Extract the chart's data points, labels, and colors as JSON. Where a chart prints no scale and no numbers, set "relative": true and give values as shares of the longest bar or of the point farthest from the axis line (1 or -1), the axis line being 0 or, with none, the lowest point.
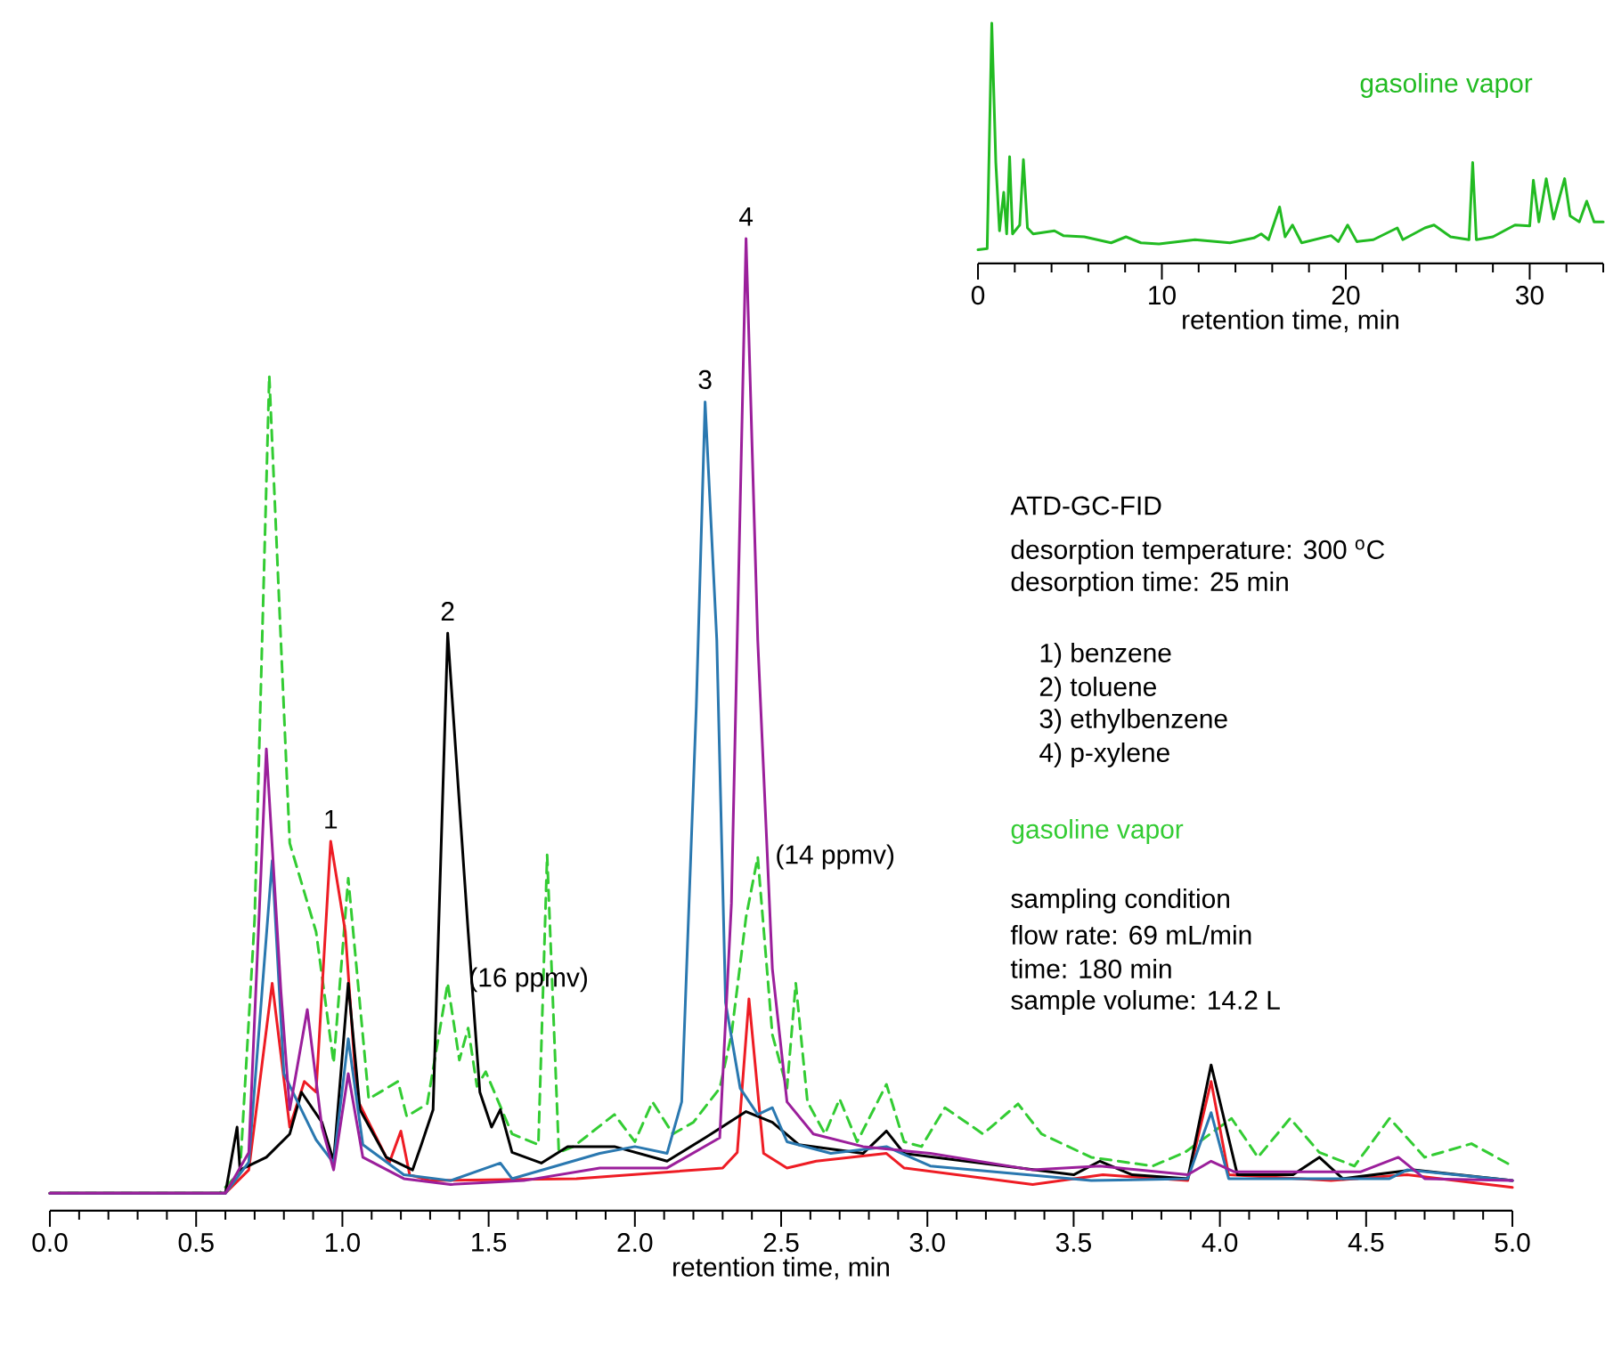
{
  "chart_data": [
    {
      "type": "line",
      "relative": true,
      "xlabel": "retention time, min",
      "xlim": [
        0,
        5
      ],
      "xticks": [
        {
          "value": 0,
          "label": "0.0"
        },
        {
          "value": 0.1,
          "label": null
        },
        {
          "value": 0.2,
          "label": null
        },
        {
          "value": 0.3,
          "label": null
        },
        {
          "value": 0.4,
          "label": null
        },
        {
          "value": 0.5,
          "label": "0.5"
        },
        {
          "value": 0.6,
          "label": null
        },
        {
          "value": 0.7,
          "label": null
        },
        {
          "value": 0.8,
          "label": null
        },
        {
          "value": 0.9,
          "label": null
        },
        {
          "value": 1,
          "label": "1.0"
        },
        {
          "value": 1.1,
          "label": null
        },
        {
          "value": 1.2,
          "label": null
        },
        {
          "value": 1.3,
          "label": null
        },
        {
          "value": 1.4,
          "label": null
        },
        {
          "value": 1.5,
          "label": "1.5"
        },
        {
          "value": 1.6,
          "label": null
        },
        {
          "value": 1.7,
          "label": null
        },
        {
          "value": 1.8,
          "label": null
        },
        {
          "value": 1.9,
          "label": null
        },
        {
          "value": 2,
          "label": "2.0"
        },
        {
          "value": 2.1,
          "label": null
        },
        {
          "value": 2.2,
          "label": null
        },
        {
          "value": 2.3,
          "label": null
        },
        {
          "value": 2.4,
          "label": null
        },
        {
          "value": 2.5,
          "label": "2.5"
        },
        {
          "value": 2.6,
          "label": null
        },
        {
          "value": 2.7,
          "label": null
        },
        {
          "value": 2.8,
          "label": null
        },
        {
          "value": 2.9,
          "label": null
        },
        {
          "value": 3,
          "label": "3.0"
        },
        {
          "value": 3.1,
          "label": null
        },
        {
          "value": 3.2,
          "label": null
        },
        {
          "value": 3.3,
          "label": null
        },
        {
          "value": 3.4,
          "label": null
        },
        {
          "value": 3.5,
          "label": "3.5"
        },
        {
          "value": 3.6,
          "label": null
        },
        {
          "value": 3.7,
          "label": null
        },
        {
          "value": 3.8,
          "label": null
        },
        {
          "value": 3.9,
          "label": null
        },
        {
          "value": 4,
          "label": "4.0"
        },
        {
          "value": 4.1,
          "label": null
        },
        {
          "value": 4.2,
          "label": null
        },
        {
          "value": 4.3,
          "label": null
        },
        {
          "value": 4.4,
          "label": null
        },
        {
          "value": 4.5,
          "label": "4.5"
        },
        {
          "value": 4.6,
          "label": null
        },
        {
          "value": 4.7,
          "label": null
        },
        {
          "value": 4.8,
          "label": null
        },
        {
          "value": 4.9,
          "label": null
        },
        {
          "value": 5,
          "label": "5.0"
        }
      ],
      "series": [
        {
          "name": "gasoline vapor",
          "color": "#33cc33",
          "line_style": "dashed",
          "x": [
            0,
            0.58,
            0.65,
            0.7,
            0.75,
            0.82,
            0.91,
            0.97,
            1.02,
            1.09,
            1.19,
            1.22,
            1.29,
            1.36,
            1.4,
            1.43,
            1.46,
            1.49,
            1.58,
            1.67,
            1.7,
            1.74,
            1.79,
            1.93,
            2.0,
            2.06,
            2.13,
            2.2,
            2.29,
            2.33,
            2.38,
            2.42,
            2.47,
            2.52,
            2.55,
            2.59,
            2.65,
            2.7,
            2.76,
            2.86,
            2.92,
            2.98,
            3.06,
            3.19,
            3.31,
            3.39,
            3.56,
            3.77,
            3.88,
            4.04,
            4.13,
            4.24,
            4.34,
            4.46,
            4.58,
            4.7,
            4.86,
            5.0
          ],
          "values": [
            0.018,
            0.018,
            0.04,
            0.3,
            0.859,
            0.378,
            0.287,
            0.152,
            0.342,
            0.115,
            0.133,
            0.097,
            0.11,
            0.234,
            0.155,
            0.188,
            0.128,
            0.143,
            0.079,
            0.068,
            0.366,
            0.06,
            0.066,
            0.099,
            0.071,
            0.112,
            0.079,
            0.091,
            0.126,
            0.181,
            0.302,
            0.364,
            0.181,
            0.126,
            0.234,
            0.112,
            0.079,
            0.115,
            0.071,
            0.13,
            0.071,
            0.066,
            0.106,
            0.079,
            0.11,
            0.079,
            0.055,
            0.046,
            0.06,
            0.095,
            0.055,
            0.095,
            0.06,
            0.046,
            0.095,
            0.055,
            0.069,
            0.046
          ]
        },
        {
          "color": "#ee1c24",
          "x": [
            0,
            0.6,
            0.68,
            0.76,
            0.82,
            0.87,
            0.91,
            0.96,
            1.01,
            1.05,
            1.11,
            1.16,
            1.2,
            1.23,
            1.3,
            1.8,
            2.3,
            2.35,
            2.39,
            2.44,
            2.52,
            2.62,
            2.86,
            2.92,
            3.36,
            3.6,
            3.89,
            3.97,
            4.03,
            4.38,
            4.64,
            5.0
          ],
          "values": [
            0.018,
            0.018,
            0.042,
            0.234,
            0.086,
            0.133,
            0.122,
            0.38,
            0.287,
            0.115,
            0.079,
            0.049,
            0.082,
            0.037,
            0.031,
            0.033,
            0.044,
            0.06,
            0.218,
            0.059,
            0.044,
            0.051,
            0.059,
            0.044,
            0.027,
            0.037,
            0.031,
            0.133,
            0.037,
            0.031,
            0.037,
            0.024
          ]
        },
        {
          "color": "#000000",
          "x": [
            0,
            0.6,
            0.64,
            0.65,
            0.74,
            0.82,
            0.86,
            0.93,
            0.97,
            1.02,
            1.06,
            1.15,
            1.24,
            1.27,
            1.31,
            1.36,
            1.43,
            1.47,
            1.51,
            1.54,
            1.58,
            1.68,
            1.77,
            1.93,
            2.11,
            2.24,
            2.38,
            2.47,
            2.56,
            2.78,
            2.86,
            2.92,
            3.5,
            3.59,
            3.7,
            3.89,
            3.97,
            4.06,
            4.25,
            4.34,
            4.42,
            4.66,
            5.0
          ],
          "values": [
            0.018,
            0.018,
            0.086,
            0.042,
            0.055,
            0.079,
            0.122,
            0.091,
            0.051,
            0.234,
            0.104,
            0.055,
            0.042,
            0.068,
            0.104,
            0.594,
            0.287,
            0.122,
            0.086,
            0.104,
            0.06,
            0.049,
            0.066,
            0.066,
            0.051,
            0.075,
            0.102,
            0.091,
            0.068,
            0.059,
            0.082,
            0.059,
            0.037,
            0.051,
            0.037,
            0.033,
            0.15,
            0.037,
            0.037,
            0.055,
            0.033,
            0.042,
            0.031
          ]
        },
        {
          "color": "#2a78b0",
          "x": [
            0,
            0.6,
            0.68,
            0.76,
            0.8,
            0.85,
            0.91,
            0.97,
            1.02,
            1.07,
            1.21,
            1.37,
            1.54,
            1.58,
            1.88,
            2.0,
            2.11,
            2.16,
            2.21,
            2.24,
            2.28,
            2.31,
            2.36,
            2.42,
            2.47,
            2.52,
            2.67,
            2.86,
            3.01,
            3.56,
            3.89,
            3.97,
            4.03,
            4.58,
            4.64,
            5.0
          ],
          "values": [
            0.018,
            0.018,
            0.05,
            0.36,
            0.141,
            0.11,
            0.073,
            0.049,
            0.177,
            0.068,
            0.037,
            0.031,
            0.049,
            0.033,
            0.059,
            0.066,
            0.059,
            0.112,
            0.519,
            0.832,
            0.587,
            0.214,
            0.126,
            0.099,
            0.106,
            0.071,
            0.059,
            0.066,
            0.046,
            0.031,
            0.033,
            0.101,
            0.033,
            0.033,
            0.042,
            0.031
          ]
        },
        {
          "color": "#9b1f9b",
          "x": [
            0,
            0.6,
            0.68,
            0.74,
            0.79,
            0.82,
            0.88,
            0.93,
            0.97,
            1.02,
            1.07,
            1.21,
            1.37,
            1.62,
            1.88,
            2.11,
            2.29,
            2.33,
            2.38,
            2.42,
            2.47,
            2.52,
            2.61,
            2.78,
            3.01,
            3.36,
            3.59,
            3.89,
            3.97,
            4.05,
            4.48,
            4.61,
            4.7,
            5.0
          ],
          "values": [
            0.018,
            0.018,
            0.06,
            0.475,
            0.225,
            0.104,
            0.207,
            0.086,
            0.042,
            0.141,
            0.055,
            0.033,
            0.027,
            0.031,
            0.044,
            0.044,
            0.075,
            0.316,
            1,
            0.587,
            0.249,
            0.112,
            0.079,
            0.066,
            0.059,
            0.042,
            0.046,
            0.037,
            0.051,
            0.04,
            0.04,
            0.055,
            0.033,
            0.031
          ]
        }
      ],
      "annotations": [
        {
          "text": "1",
          "x": 0.96,
          "y": 0.38
        },
        {
          "text": "2",
          "x": 1.36,
          "y": 0.594
        },
        {
          "text": "3",
          "x": 2.24,
          "y": 0.832
        },
        {
          "text": "4",
          "x": 2.38,
          "y": 1
        },
        {
          "text": "(16 ppmv)",
          "x": 1.37,
          "y": 0.234
        },
        {
          "text": "(14 ppmv)",
          "x": 2.43,
          "y": 0.364
        },
        "ATD-GC-FID",
        "desorption temperature: 300 $^{o}$C",
        "desorption time: 25 min",
        "1) benzene",
        "2) toluene",
        "3) ethylbenzene",
        "4) p-xylene",
        "sampling condition",
        "flow rate: 69 mL/min",
        "time: 180 min",
        "sample volume: 14.2 L"
      ]
    },
    {
      "type": "line",
      "relative": true,
      "xlabel": "retention time, min",
      "xlim": [
        0,
        34
      ],
      "xticks": [
        0,
        {
          "value": 2,
          "label": null
        },
        {
          "value": 4,
          "label": null
        },
        {
          "value": 6,
          "label": null
        },
        {
          "value": 8,
          "label": null
        },
        10,
        {
          "value": 12,
          "label": null
        },
        {
          "value": 14,
          "label": null
        },
        {
          "value": 16,
          "label": null
        },
        {
          "value": 18,
          "label": null
        },
        20,
        {
          "value": 22,
          "label": null
        },
        {
          "value": 24,
          "label": null
        },
        {
          "value": 26,
          "label": null
        },
        {
          "value": 28,
          "label": null
        },
        30,
        {
          "value": 32,
          "label": null
        },
        {
          "value": 34,
          "label": null
        }
      ],
      "series": [
        {
          "name": "gasoline vapor",
          "color": "#22bb22",
          "x": [
            0,
            0.5,
            0.75,
            0.97,
            1.17,
            1.4,
            1.56,
            1.72,
            1.88,
            2.27,
            2.47,
            2.69,
            3.0,
            4.16,
            4.64,
            5.78,
            7.24,
            8.05,
            8.86,
            9.84,
            11.8,
            13.7,
            15.0,
            15.4,
            15.8,
            16.4,
            16.7,
            17.1,
            17.6,
            19.2,
            19.6,
            20.1,
            20.6,
            21.5,
            22.8,
            23.1,
            24.3,
            24.8,
            25.7,
            26.7,
            26.9,
            27.1,
            28.0,
            29.2,
            30.0,
            30.2,
            30.5,
            30.9,
            31.3,
            31.9,
            32.2,
            32.7,
            33.1,
            33.5,
            34.0
          ],
          "values": [
            0.057,
            0.062,
            1,
            0.42,
            0.136,
            0.296,
            0.123,
            0.444,
            0.123,
            0.16,
            0.432,
            0.148,
            0.123,
            0.136,
            0.116,
            0.111,
            0.086,
            0.111,
            0.086,
            0.081,
            0.099,
            0.086,
            0.106,
            0.123,
            0.099,
            0.235,
            0.111,
            0.16,
            0.086,
            0.116,
            0.091,
            0.16,
            0.091,
            0.099,
            0.148,
            0.099,
            0.148,
            0.16,
            0.111,
            0.099,
            0.42,
            0.099,
            0.111,
            0.16,
            0.156,
            0.346,
            0.173,
            0.353,
            0.185,
            0.353,
            0.198,
            0.173,
            0.259,
            0.173,
            0.173
          ]
        }
      ]
    }
  ]
}
